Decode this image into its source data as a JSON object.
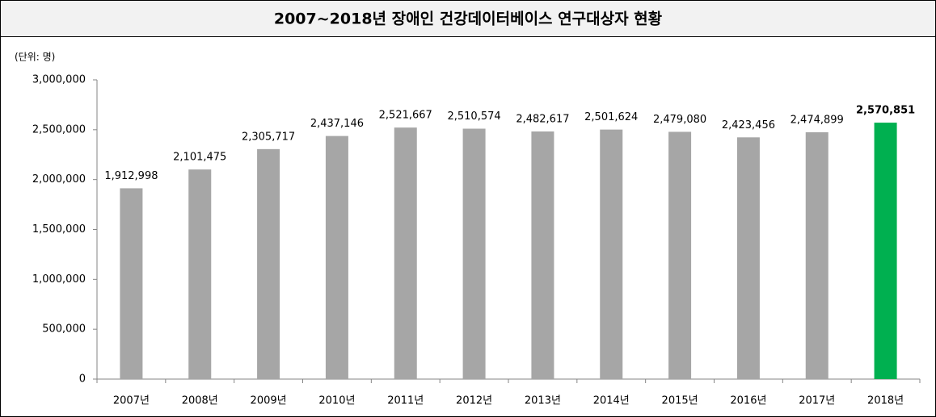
{
  "chart_data": {
    "type": "bar",
    "title": "2007~2018년 장애인 건강데이터베이스 연구대상자 현황",
    "unit_label": "(단위: 명)",
    "categories": [
      "2007년",
      "2008년",
      "2009년",
      "2010년",
      "2011년",
      "2012년",
      "2013년",
      "2014년",
      "2015년",
      "2016년",
      "2017년",
      "2018년"
    ],
    "values": [
      1912998,
      2101475,
      2305717,
      2437146,
      2521667,
      2510574,
      2482617,
      2501624,
      2479080,
      2423456,
      2474899,
      2570851
    ],
    "value_labels": [
      "1,912,998",
      "2,101,475",
      "2,305,717",
      "2,437,146",
      "2,521,667",
      "2,510,574",
      "2,482,617",
      "2,501,624",
      "2,479,080",
      "2,423,456",
      "2,474,899",
      "2,570,851"
    ],
    "colors": [
      "#a6a6a6",
      "#a6a6a6",
      "#a6a6a6",
      "#a6a6a6",
      "#a6a6a6",
      "#a6a6a6",
      "#a6a6a6",
      "#a6a6a6",
      "#a6a6a6",
      "#a6a6a6",
      "#a6a6a6",
      "#00b050"
    ],
    "ylim": [
      0,
      3000000
    ],
    "yticks": [
      0,
      {
        "value": 500000,
        "label": "500,000"
      },
      {
        "value": 1000000,
        "label": "1,000,000"
      },
      {
        "value": 1500000,
        "label": "1,500,000"
      },
      {
        "value": 2000000,
        "label": "2,000,000"
      },
      {
        "value": 2500000,
        "label": "2,500,000"
      },
      {
        "value": 3000000,
        "label": "3,000,000"
      }
    ],
    "grid": false
  }
}
